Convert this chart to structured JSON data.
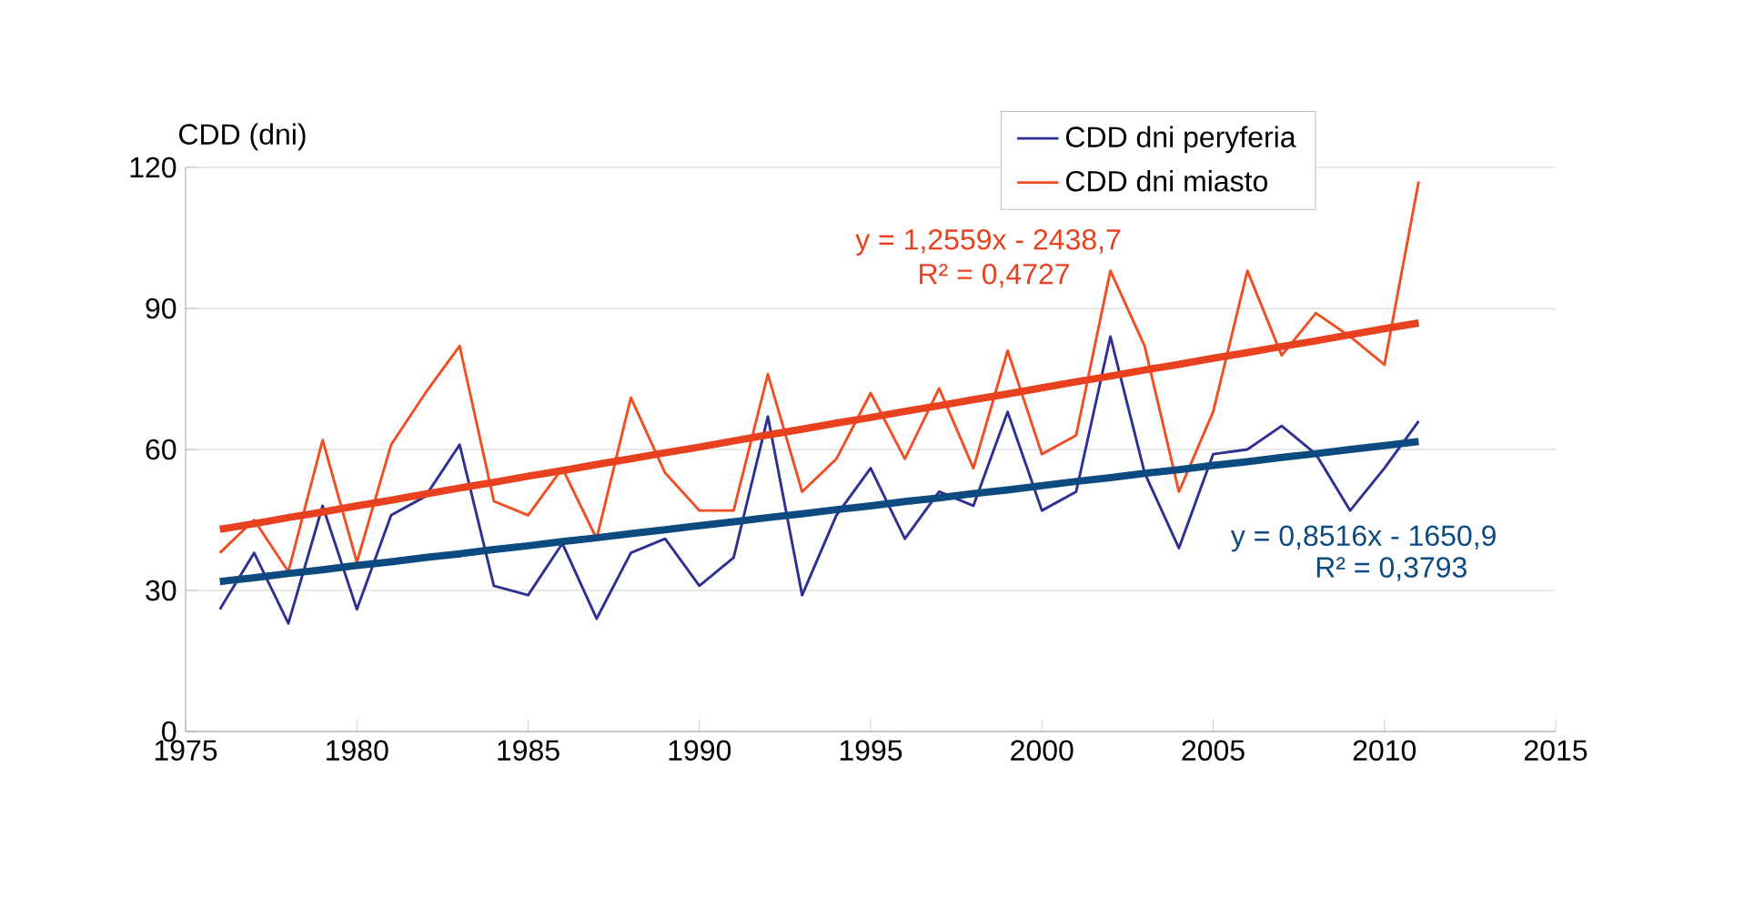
{
  "chart_data": {
    "type": "line",
    "ylabel": "CDD (dni)",
    "x": [
      1976,
      1977,
      1978,
      1979,
      1980,
      1981,
      1982,
      1983,
      1984,
      1985,
      1986,
      1987,
      1988,
      1989,
      1990,
      1991,
      1992,
      1993,
      1994,
      1995,
      1996,
      1997,
      1998,
      1999,
      2000,
      2001,
      2002,
      2003,
      2004,
      2005,
      2006,
      2007,
      2008,
      2009,
      2010,
      2011
    ],
    "series": [
      {
        "name": "CDD dni peryferia",
        "color": "#2e3192",
        "values": [
          26,
          38,
          23,
          48,
          26,
          46,
          50,
          61,
          31,
          29,
          40,
          24,
          38,
          41,
          31,
          37,
          67,
          29,
          46,
          56,
          41,
          51,
          48,
          68,
          47,
          51,
          84,
          55,
          39,
          59,
          60,
          65,
          59,
          47,
          56,
          66
        ]
      },
      {
        "name": "CDD dni miasto",
        "color": "#f04e23",
        "values": [
          38,
          45,
          34,
          62,
          36,
          61,
          72,
          82,
          49,
          46,
          56,
          41,
          71,
          55,
          47,
          47,
          76,
          51,
          58,
          72,
          58,
          73,
          56,
          81,
          59,
          63,
          98,
          82,
          51,
          68,
          98,
          80,
          89,
          84,
          78,
          117
        ]
      },
      {
        "type": "line",
        "color": "#0d4a80",
        "values": [
          31.9,
          32.7,
          33.6,
          34.4,
          35.3,
          36.1,
          37.0,
          37.8,
          38.7,
          39.5,
          40.4,
          41.2,
          42.1,
          42.9,
          43.8,
          44.6,
          45.5,
          46.3,
          47.2,
          48.0,
          48.9,
          49.7,
          50.6,
          51.4,
          52.3,
          53.2,
          54.0,
          54.9,
          55.7,
          56.6,
          57.4,
          58.3,
          59.1,
          60.0,
          60.8,
          61.7
        ]
      },
      {
        "type": "line",
        "color": "#e8411f",
        "values": [
          43.0,
          44.2,
          45.5,
          46.7,
          48.0,
          49.2,
          50.5,
          51.8,
          53.0,
          54.3,
          55.5,
          56.8,
          58.0,
          59.3,
          60.5,
          61.8,
          63.1,
          64.3,
          65.6,
          66.8,
          68.1,
          69.3,
          70.6,
          71.8,
          73.1,
          74.4,
          75.6,
          76.9,
          78.1,
          79.4,
          80.6,
          81.9,
          83.1,
          84.4,
          85.7,
          86.9
        ]
      }
    ],
    "annotations": [
      "y = 1,2559x - 2438,7",
      "R² = 0,4727",
      "y = 0,8516x - 1650,9",
      "R² = 0,3793"
    ],
    "xlim": [
      1975,
      2015
    ],
    "xticks": [
      1975,
      1980,
      1985,
      1990,
      1995,
      2000,
      2005,
      2010,
      2015
    ],
    "ylim": [
      0,
      120
    ],
    "yticks": [
      0,
      30,
      60,
      90,
      120
    ],
    "grid": "y",
    "legend": "top",
    "line_style": "solid",
    "marker": "none"
  }
}
